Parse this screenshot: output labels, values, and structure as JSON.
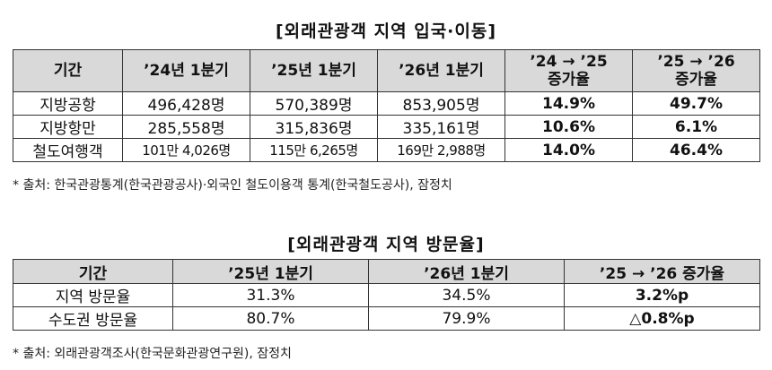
{
  "table1": {
    "title": "[외래관광객 지역 입국·이동]",
    "headers": [
      "기간",
      "’24년 1분기",
      "’25년 1분기",
      "’26년 1분기",
      "’24 → ’25\n증가율",
      "’25 → ’26\n증가율"
    ],
    "header_lines": {
      "h4_line1": "’24 → ’25",
      "h4_line2": "증가율",
      "h5_line1": "’25 → ’26",
      "h5_line2": "증가율"
    },
    "rows": [
      [
        "지방공항",
        "496,428명",
        "570,389명",
        "853,905명",
        "14.9%",
        "49.7%"
      ],
      [
        "지방항만",
        "285,558명",
        "315,836명",
        "335,161명",
        "10.6%",
        "6.1%"
      ],
      [
        "철도여행객",
        "101만 4,026명",
        "115만 6,265명",
        "169만 2,988명",
        "14.0%",
        "46.4%"
      ]
    ],
    "note": "* 출처: 한국관광통계(한국관광공사)·외국인 철도이용객 통계(한국철도공사), 잠정치"
  },
  "table2": {
    "title": "[외래관광객 지역 방문율]",
    "headers": [
      "기간",
      "’25년 1분기",
      "’26년 1분기",
      "’25 → ’26 증가율"
    ],
    "rows": [
      [
        "지역 방문율",
        "31.3%",
        "34.5%",
        "3.2%p"
      ],
      [
        "수도권 방문율",
        "80.7%",
        "79.9%",
        "△0.8%p"
      ]
    ],
    "note": "* 출처: 외래관광객조사(한국문화관광연구원), 잠정치"
  },
  "colors": {
    "header_bg": "#d9d9d9",
    "border": "#333333",
    "text": "#111111"
  }
}
